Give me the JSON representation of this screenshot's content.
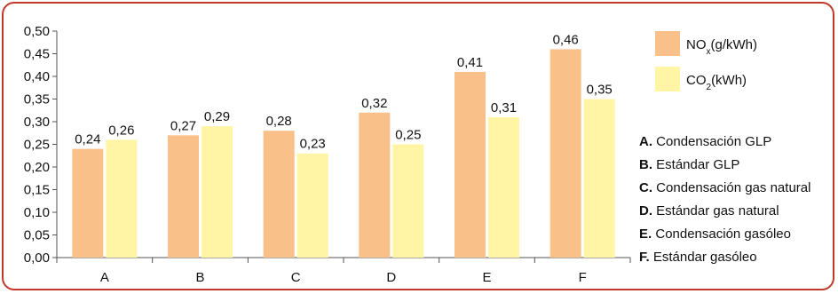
{
  "chart_data": {
    "type": "bar",
    "categories": [
      "A",
      "B",
      "C",
      "D",
      "E",
      "F"
    ],
    "series": [
      {
        "name": "NOx (g/kWh)",
        "values": [
          0.24,
          0.27,
          0.28,
          0.32,
          0.41,
          0.46
        ],
        "labels": [
          "0,24",
          "0,27",
          "0,28",
          "0,32",
          "0,41",
          "0,46"
        ],
        "color": "#f9c08a"
      },
      {
        "name": "CO2 (kWh)",
        "values": [
          0.26,
          0.29,
          0.23,
          0.25,
          0.31,
          0.35
        ],
        "labels": [
          "0,26",
          "0,29",
          "0,23",
          "0,25",
          "0,31",
          "0,35"
        ],
        "color": "#fff5a5"
      }
    ],
    "ylim": [
      0,
      0.5
    ],
    "yticks": [
      "0,00",
      "0,05",
      "0,10",
      "0,15",
      "0,20",
      "0,25",
      "0,30",
      "0,35",
      "0,40",
      "0,45",
      "0,50"
    ],
    "grid": false,
    "legend": {
      "placement": "top-right",
      "items": [
        {
          "main": "NO",
          "sub": "x",
          "rest": "(g/kWh)"
        },
        {
          "main": "CO",
          "sub": "2",
          "rest": "(kWh)"
        }
      ]
    },
    "notes": [
      {
        "key": "A.",
        "text": "Condensación GLP"
      },
      {
        "key": "B.",
        "text": "Estándar GLP"
      },
      {
        "key": "C.",
        "text": "Condensación gas natural"
      },
      {
        "key": "D.",
        "text": "Estándar gas natural"
      },
      {
        "key": "E.",
        "text": "Condensación gasóleo"
      },
      {
        "key": "F.",
        "text": "Estándar gasóleo"
      }
    ],
    "frame_color": "#c0392b"
  }
}
